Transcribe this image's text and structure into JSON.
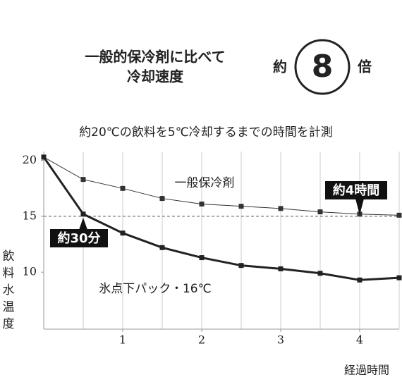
{
  "chart_data": {
    "type": "line",
    "title": [
      "一般的保冷剤に比べて",
      "冷却速度"
    ],
    "badge": {
      "prefix": "約",
      "value": "8",
      "suffix": "倍"
    },
    "subtitle": "約20℃の飲料を5℃冷却するまでの時間を計測",
    "x": [
      0,
      0.5,
      1,
      1.5,
      2,
      2.5,
      3,
      3.5,
      4,
      4.5
    ],
    "series": [
      {
        "name": "一般保冷剤",
        "color": "#333333",
        "width": 1,
        "values": [
          20.3,
          18.3,
          17.5,
          16.6,
          16.1,
          15.9,
          15.7,
          15.4,
          15.2,
          15.1
        ]
      },
      {
        "name": "氷点下パック・16℃",
        "color": "#222222",
        "width": 3,
        "values": [
          20.3,
          15.2,
          13.5,
          12.2,
          11.3,
          10.6,
          10.3,
          9.9,
          9.3,
          9.5
        ]
      }
    ],
    "reference_line": 15,
    "annotations": [
      {
        "text": "約30分",
        "x": 0.5
      },
      {
        "text": "約4時間",
        "x": 4
      }
    ],
    "xlim": [
      0,
      4.5
    ],
    "xticks": [
      1,
      2,
      3,
      4
    ],
    "ylim": [
      4.9,
      20.8
    ],
    "yticks": [
      10,
      15,
      20
    ],
    "xlabel": "経過時間",
    "ylabel": [
      "飲",
      "料",
      "水",
      "温",
      "度"
    ]
  }
}
